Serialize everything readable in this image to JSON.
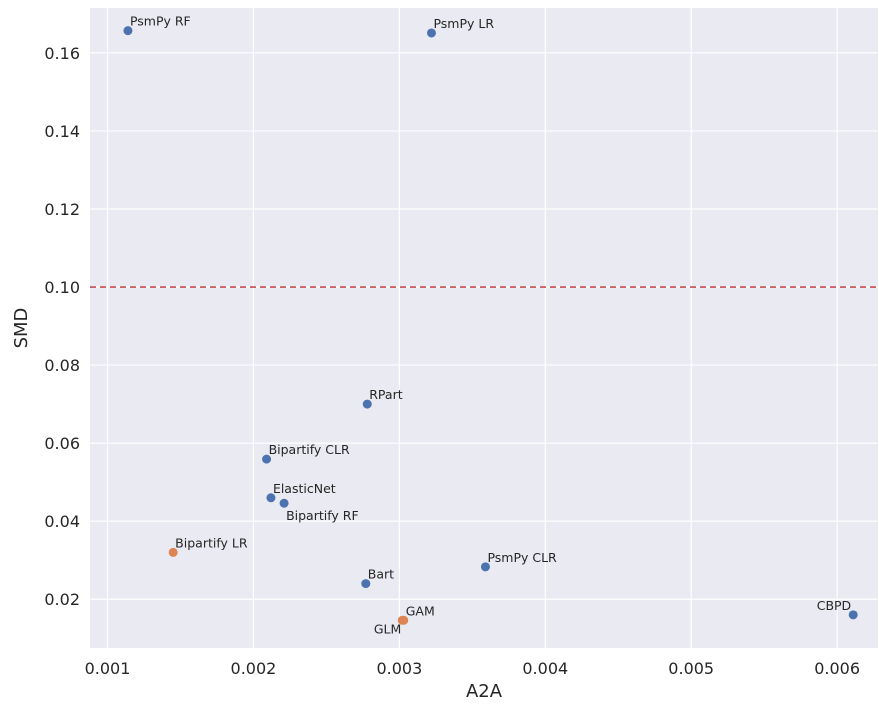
{
  "chart_data": {
    "type": "scatter",
    "title": "",
    "xlabel": "A2A",
    "ylabel": "SMD",
    "xlim": [
      0.00088,
      0.00628
    ],
    "ylim": [
      0.0075,
      0.1715
    ],
    "xticks": [
      0.001,
      0.002,
      0.003,
      0.004,
      0.005,
      0.006
    ],
    "xtick_labels": [
      "0.001",
      "0.002",
      "0.003",
      "0.004",
      "0.005",
      "0.006"
    ],
    "yticks": [
      0.02,
      0.04,
      0.06,
      0.08,
      0.1,
      0.12,
      0.14,
      0.16
    ],
    "ytick_labels": [
      "0.02",
      "0.04",
      "0.06",
      "0.08",
      "0.10",
      "0.12",
      "0.14",
      "0.16"
    ],
    "grid": true,
    "reference_line": {
      "axis": "y",
      "value": 0.1,
      "style": "dashed",
      "color": "#c44e52"
    },
    "colors": {
      "blue": "#4c72b0",
      "orange": "#dd8452",
      "background": "#eaeaf2",
      "grid": "#ffffff"
    },
    "points": [
      {
        "label": "PsmPy RF",
        "x": 0.00114,
        "y": 0.1657,
        "color": "blue",
        "anchor": "right"
      },
      {
        "label": "PsmPy LR",
        "x": 0.00322,
        "y": 0.1651,
        "color": "blue",
        "anchor": "right"
      },
      {
        "label": "RPart",
        "x": 0.00278,
        "y": 0.07,
        "color": "blue",
        "anchor": "right"
      },
      {
        "label": "Bipartify CLR",
        "x": 0.00209,
        "y": 0.0559,
        "color": "blue",
        "anchor": "right"
      },
      {
        "label": "ElasticNet",
        "x": 0.00212,
        "y": 0.046,
        "color": "blue",
        "anchor": "right"
      },
      {
        "label": "Bipartify RF",
        "x": 0.00221,
        "y": 0.0446,
        "color": "blue",
        "anchor": "right-below"
      },
      {
        "label": "Bipartify LR",
        "x": 0.00145,
        "y": 0.032,
        "color": "orange",
        "anchor": "right"
      },
      {
        "label": "PsmPy CLR",
        "x": 0.00359,
        "y": 0.0283,
        "color": "blue",
        "anchor": "right"
      },
      {
        "label": "Bart",
        "x": 0.00277,
        "y": 0.024,
        "color": "blue",
        "anchor": "right"
      },
      {
        "label": "GAM",
        "x": 0.00303,
        "y": 0.0146,
        "color": "orange",
        "anchor": "right"
      },
      {
        "label": "GLM",
        "x": 0.00302,
        "y": 0.0146,
        "color": "orange",
        "anchor": "left-below"
      },
      {
        "label": "CBPD",
        "x": 0.00611,
        "y": 0.016,
        "color": "blue",
        "anchor": "left"
      }
    ]
  }
}
